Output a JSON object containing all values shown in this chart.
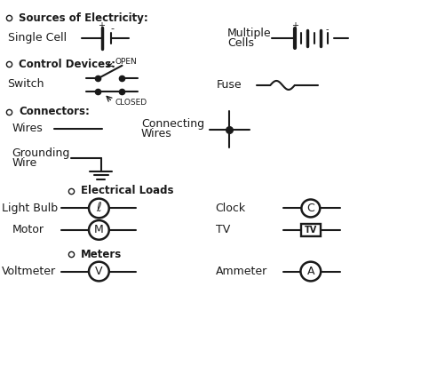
{
  "bg_color": "#ffffff",
  "line_color": "#1a1a1a",
  "text_color": "#1a1a1a",
  "fig_width": 4.74,
  "fig_height": 4.3,
  "xlim": [
    0,
    10
  ],
  "ylim": [
    0,
    9.5
  ],
  "sections": {
    "sources_title": "Sources of Electricity:",
    "single_cell": "Single Cell",
    "multiple_cells_1": "Multiple",
    "multiple_cells_2": "Cells",
    "control_title": "Control Devices:",
    "switch": "Switch",
    "open_label": "OPEN",
    "closed_label": "CLOSED",
    "fuse": "Fuse",
    "connectors_title": "Connectors:",
    "wires": "Wires",
    "connecting_wires_1": "Connecting",
    "connecting_wires_2": "Wires",
    "grounding_wire_1": "Grounding",
    "grounding_wire_2": "Wire",
    "loads_title": "Electrical Loads",
    "light_bulb": "Light Bulb",
    "clock": "Clock",
    "motor": "Motor",
    "tv": "TV",
    "meters_title": "Meters",
    "voltmeter": "Voltmeter",
    "ammeter": "Ammeter"
  }
}
